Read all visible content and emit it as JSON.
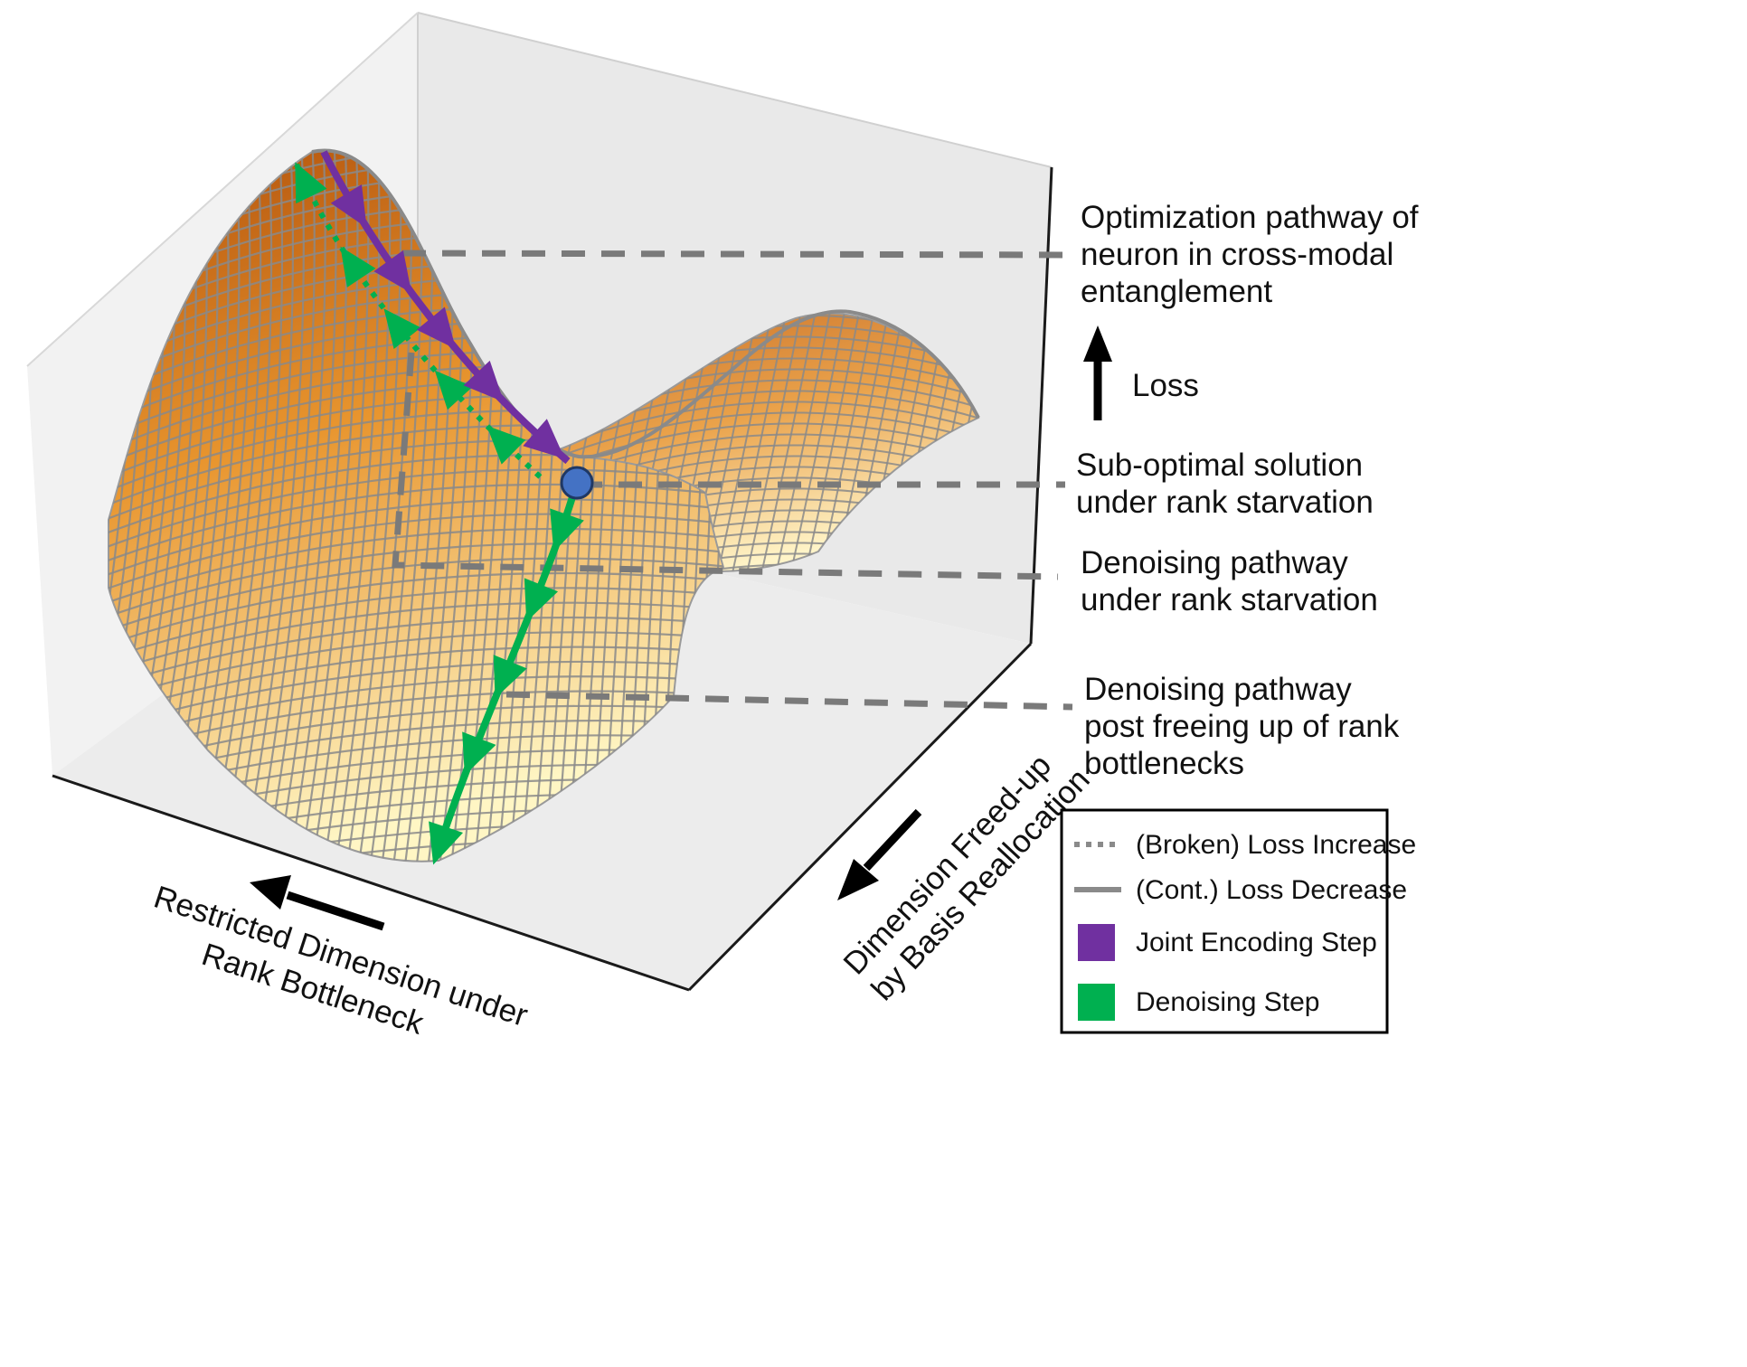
{
  "colors": {
    "surface_dark": "#b2520c",
    "surface_mid": "#e8952e",
    "surface_light": "#fff6c4",
    "mesh": "#8a8a8a",
    "purple_path": "#7030a0",
    "green_path": "#00b050",
    "point": "#4472c4",
    "leader_lines": "#7a7a7a",
    "axis_arrows": "#000000"
  },
  "annotations": {
    "entanglement": [
      "Optimization pathway of",
      "neuron in cross-modal",
      "entanglement"
    ],
    "loss": "Loss",
    "suboptimal": [
      "Sub-optimal solution",
      "under rank starvation"
    ],
    "denoising_starved": [
      "Denoising pathway",
      "under rank starvation"
    ],
    "denoising_freed": [
      "Denoising pathway",
      "post freeing up of rank",
      "bottlenecks"
    ]
  },
  "axes": {
    "restricted": [
      "Restricted Dimension under",
      "Rank Bottleneck"
    ],
    "freed": [
      "Dimension Freed-up",
      "by Basis Reallocation"
    ]
  },
  "legend": {
    "items": [
      {
        "label": "(Broken) Loss Increase",
        "icon": "dotted-line-icon"
      },
      {
        "label": "(Cont.) Loss Decrease",
        "icon": "solid-line-icon"
      },
      {
        "label": "Joint Encoding Step",
        "icon": "purple-square-icon"
      },
      {
        "label": "Denoising Step",
        "icon": "green-square-icon"
      }
    ]
  }
}
